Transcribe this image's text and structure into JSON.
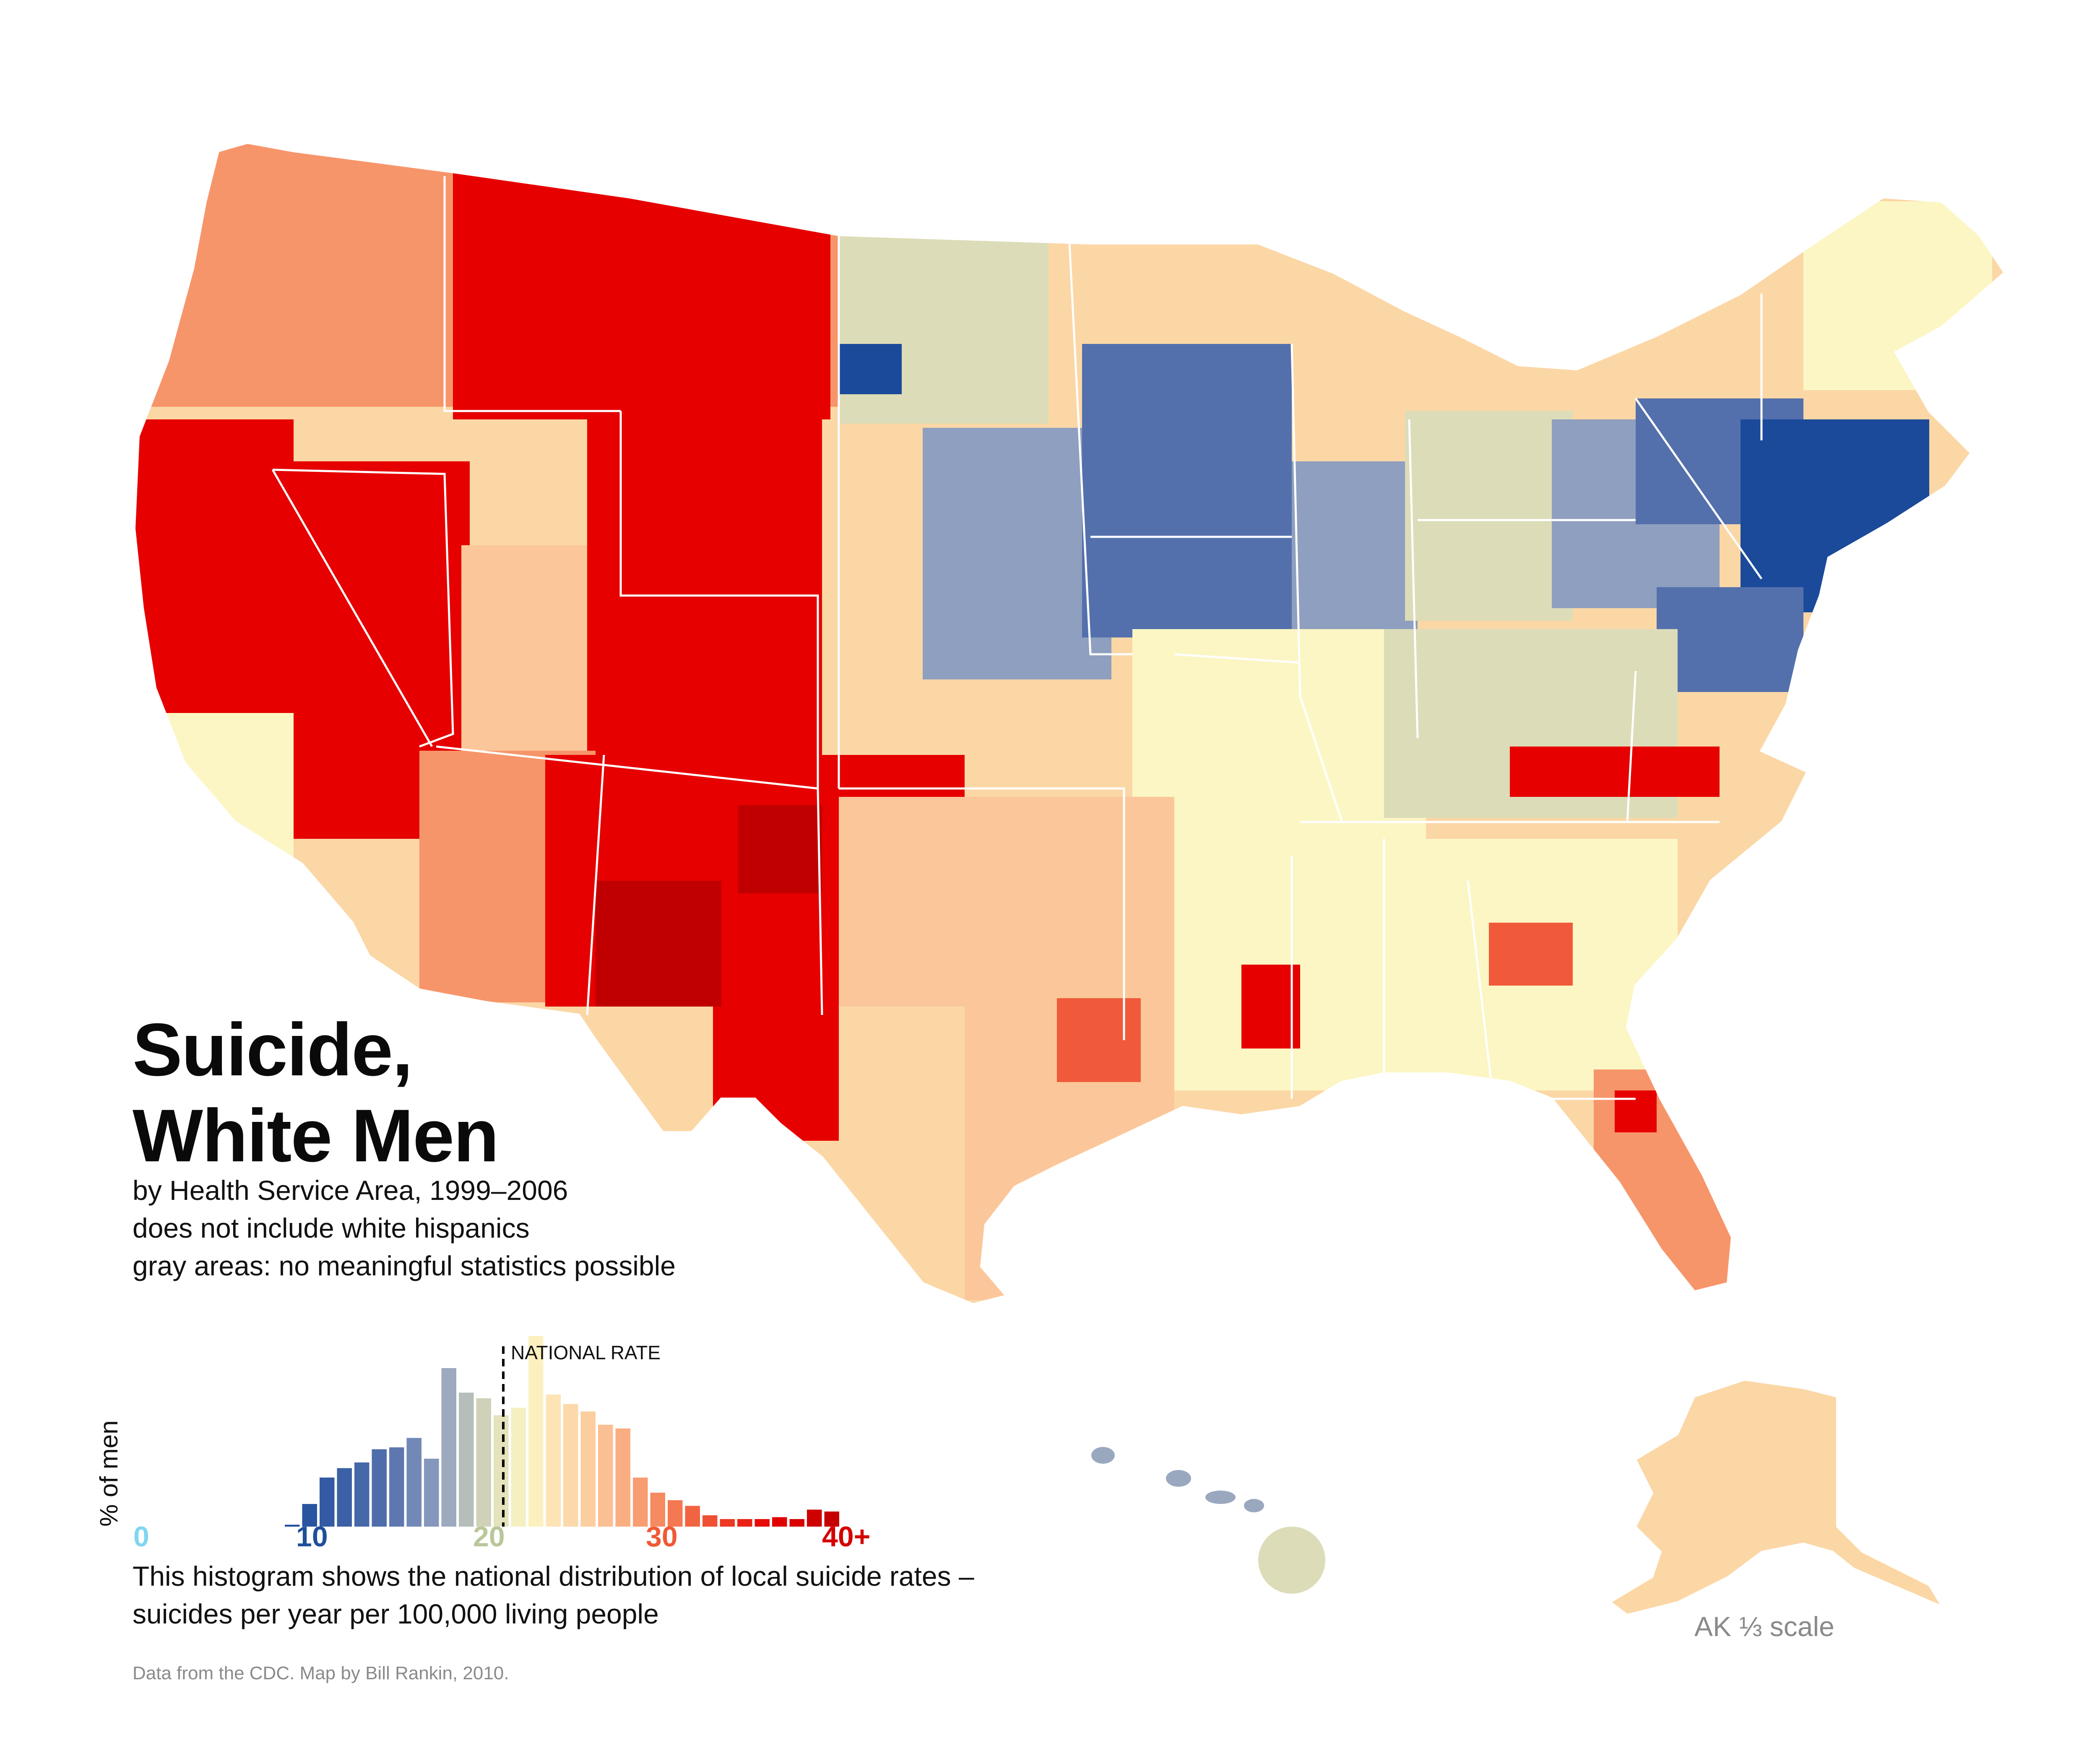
{
  "title_lines": [
    "Suicide,",
    "White Men"
  ],
  "subtitle_lines": [
    "by Health Service Area, 1999–2006",
    "does not include white hispanics",
    "gray areas: no meaningful statistics possible"
  ],
  "histogram": {
    "ylabel": "% of men",
    "national_rate_label": "NATIONAL RATE",
    "national_rate_value": 20.5,
    "ticks": [
      {
        "label": "0",
        "color": "#7fd6ef"
      },
      {
        "label": "10",
        "color": "#1f4f9a"
      },
      {
        "label": "20",
        "color": "#b9c79a"
      },
      {
        "label": "30",
        "color": "#ef5a35"
      },
      {
        "label": "40+",
        "color": "#d40000"
      }
    ]
  },
  "caption_lines": [
    "This histogram shows the national distribution of local suicide rates –",
    "suicides per year per 100,000 living people"
  ],
  "credit": "Data from the CDC. Map by Bill Rankin, 2010.",
  "ak_scale_label": "AK ⅓ scale",
  "colors": {
    "deep_red": "#c00000",
    "red": "#e60000",
    "orange_red": "#f05a3a",
    "orange": "#f7956a",
    "light_orange": "#fbc79a",
    "pale_yellow": "#fcf6c4",
    "pale_green": "#dcdcb8",
    "gray_blue": "#8f9fbf",
    "blue": "#5470ac",
    "dark_blue": "#1b4a9a",
    "no_data": "#dedede"
  },
  "chart_data": {
    "type": "bar",
    "title": "",
    "xlabel": "suicides per year per 100,000 living people",
    "ylabel": "% of men",
    "xlim": [
      0,
      40
    ],
    "x_ticks": [
      "0",
      "10",
      "20",
      "30",
      "40+"
    ],
    "bin_start": 8,
    "bin_width": 1,
    "values": [
      0.1,
      1.2,
      2.6,
      3.1,
      3.4,
      4.1,
      4.2,
      4.7,
      3.6,
      8.4,
      7.1,
      6.8,
      5.9,
      6.3,
      10.1,
      7.0,
      6.5,
      6.1,
      5.4,
      5.2,
      2.6,
      1.8,
      1.4,
      1.1,
      0.6,
      0.4,
      0.4,
      0.4,
      0.5,
      0.4,
      0.9,
      0.8
    ]
  }
}
